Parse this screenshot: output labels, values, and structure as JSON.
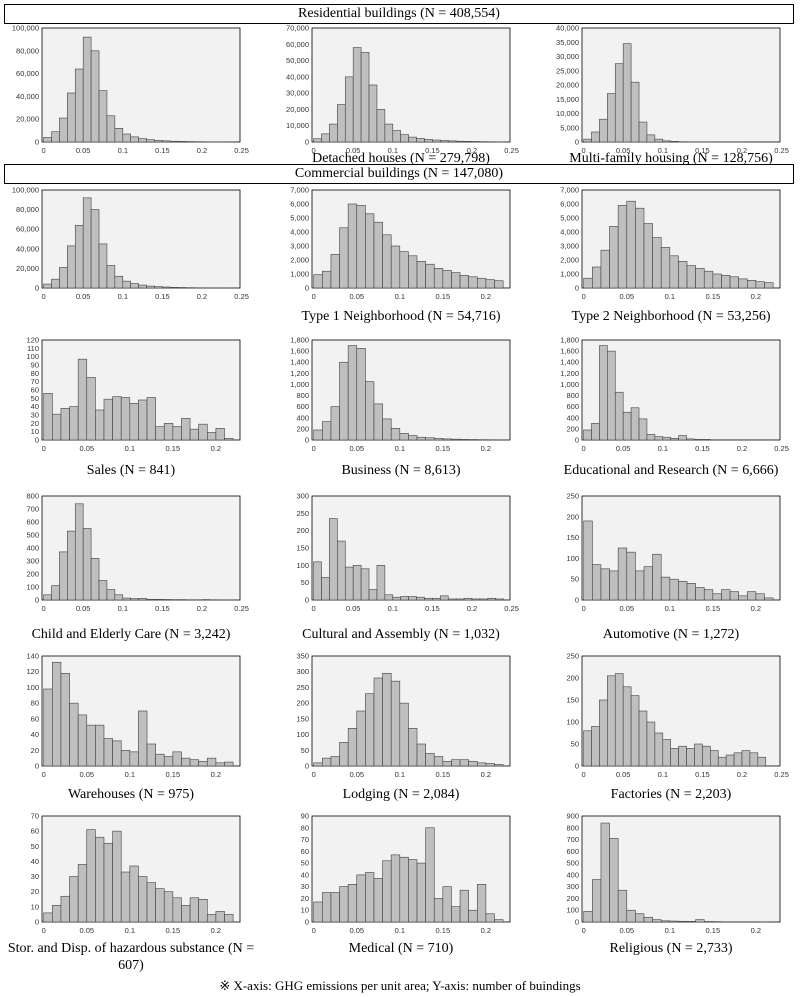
{
  "headers": {
    "residential": "Residential buildings (N = 408,554)",
    "commercial": "Commercial buildings (N = 147,080)"
  },
  "footnote": "※ X-axis: GHG emissions per unit area; Y-axis: number of buindings",
  "colors": {
    "bar": "#bfbfbf",
    "bar_stroke": "#404040",
    "plot_bg": "#f2f2f2"
  },
  "chart_data": [
    {
      "type": "bar",
      "caption": "",
      "xlim": [
        0,
        0.25
      ],
      "xticks": [
        "0",
        "0.05",
        "0.1",
        "0.15",
        "0.2",
        "0.25"
      ],
      "ylim": [
        0,
        100000
      ],
      "yticks": [
        "0",
        "20,000",
        "40,000",
        "60,000",
        "80,000",
        "100,000"
      ],
      "values": [
        4000,
        9000,
        21000,
        43000,
        64000,
        92000,
        80000,
        45000,
        23000,
        12000,
        7000,
        4500,
        3000,
        2000,
        1400,
        1000,
        700,
        500,
        350,
        250,
        150,
        100,
        70,
        50,
        30
      ]
    },
    {
      "type": "bar",
      "caption": "Detached houses (N = 279,798)",
      "xlim": [
        0,
        0.25
      ],
      "xticks": [
        "0",
        "0.05",
        "0.1",
        "0.15",
        "0.2",
        "0.25"
      ],
      "ylim": [
        0,
        70000
      ],
      "yticks": [
        "0",
        "10,000",
        "20,000",
        "30,000",
        "40,000",
        "50,000",
        "60,000",
        "70,000"
      ],
      "values": [
        2000,
        5000,
        11000,
        23000,
        40000,
        58000,
        55000,
        35000,
        20000,
        11000,
        7000,
        4500,
        3000,
        2200,
        1600,
        1200,
        900,
        700,
        500,
        400,
        300,
        200,
        150,
        100,
        80
      ]
    },
    {
      "type": "bar",
      "caption": "Multi-family housing (N = 128,756)",
      "xlim": [
        0,
        0.25
      ],
      "xticks": [
        "0",
        "0.05",
        "0.1",
        "0.15",
        "0.2",
        "0.25"
      ],
      "ylim": [
        0,
        40000
      ],
      "yticks": [
        "0",
        "5,000",
        "10,000",
        "15,000",
        "20,000",
        "25,000",
        "30,000",
        "35,000",
        "40,000"
      ],
      "values": [
        1000,
        3500,
        8000,
        17000,
        27500,
        34500,
        21000,
        7000,
        2500,
        1000,
        400,
        200,
        100,
        60,
        40,
        30,
        20,
        10,
        10,
        10,
        5,
        5,
        5,
        5,
        5
      ]
    },
    {
      "type": "bar",
      "caption": "",
      "xlim": [
        0,
        0.25
      ],
      "xticks": [
        "0",
        "0.05",
        "0.1",
        "0.15",
        "0.2",
        "0.25"
      ],
      "ylim": [
        0,
        100000
      ],
      "yticks": [
        "0",
        "20,000",
        "40,000",
        "60,000",
        "80,000",
        "100,000"
      ],
      "values": [
        4000,
        9000,
        21000,
        43000,
        64000,
        92000,
        80000,
        45000,
        23000,
        12000,
        7000,
        4500,
        3000,
        2000,
        1400,
        1000,
        700,
        500,
        350,
        250,
        150,
        100,
        70,
        50,
        30
      ]
    },
    {
      "type": "bar",
      "caption": "Type 1 Neighborhood (N = 54,716)",
      "xlim": [
        0,
        0.23
      ],
      "xticks": [
        "0",
        "0.05",
        "0.1",
        "0.15",
        "0.2"
      ],
      "ylim": [
        0,
        7000
      ],
      "yticks": [
        "0",
        "1,000",
        "2,000",
        "3,000",
        "4,000",
        "5,000",
        "6,000",
        "7,000"
      ],
      "values": [
        950,
        1200,
        2400,
        4300,
        6000,
        5900,
        5300,
        4700,
        3800,
        3000,
        2600,
        2300,
        1900,
        1700,
        1400,
        1250,
        1100,
        900,
        800,
        700,
        600,
        520,
        420
      ]
    },
    {
      "type": "bar",
      "caption": "Type 2 Neighborhood (N = 53,256)",
      "xlim": [
        0,
        0.23
      ],
      "xticks": [
        "0",
        "0.05",
        "0.1",
        "0.15",
        "0.2"
      ],
      "ylim": [
        0,
        7000
      ],
      "yticks": [
        "0",
        "1,000",
        "2,000",
        "3,000",
        "4,000",
        "5,000",
        "6,000",
        "7,000"
      ],
      "values": [
        700,
        1500,
        2700,
        4400,
        5900,
        6200,
        5700,
        4600,
        3600,
        2900,
        2300,
        1900,
        1600,
        1400,
        1200,
        1000,
        900,
        800,
        650,
        550,
        450,
        380,
        300
      ]
    },
    {
      "type": "bar",
      "caption": "Sales (N = 841)",
      "xlim": [
        0,
        0.23
      ],
      "xticks": [
        "0",
        "0.05",
        "0.1",
        "0.15",
        "0.2"
      ],
      "ylim": [
        0,
        120
      ],
      "yticks": [
        "0",
        "10",
        "20",
        "30",
        "40",
        "50",
        "60",
        "70",
        "80",
        "90",
        "100",
        "110",
        "120"
      ],
      "values": [
        56,
        31,
        38,
        40,
        97,
        75,
        36,
        49,
        52,
        51,
        44,
        48,
        51,
        16,
        20,
        16,
        26,
        13,
        19,
        9,
        14,
        2,
        5
      ]
    },
    {
      "type": "bar",
      "caption": "Business (N = 8,613)",
      "xlim": [
        0,
        0.23
      ],
      "xticks": [
        "0",
        "0.05",
        "0.1",
        "0.15",
        "0.2"
      ],
      "ylim": [
        0,
        1800
      ],
      "yticks": [
        "0",
        "200",
        "400",
        "600",
        "800",
        "1,000",
        "1,200",
        "1,400",
        "1,600",
        "1,800"
      ],
      "values": [
        180,
        330,
        600,
        1400,
        1700,
        1650,
        1050,
        650,
        380,
        210,
        120,
        80,
        50,
        40,
        30,
        20,
        15,
        10,
        8,
        6,
        5,
        4,
        3
      ]
    },
    {
      "type": "bar",
      "caption": "Educational and Research (N = 6,666)",
      "xlim": [
        0,
        0.25
      ],
      "xticks": [
        "0",
        "0.05",
        "0.1",
        "0.15",
        "0.2",
        "0.25"
      ],
      "ylim": [
        0,
        1800
      ],
      "yticks": [
        "0",
        "200",
        "400",
        "600",
        "800",
        "1,000",
        "1,200",
        "1,400",
        "1,600",
        "1,800"
      ],
      "values": [
        180,
        300,
        1700,
        1600,
        860,
        500,
        580,
        380,
        100,
        60,
        50,
        30,
        80,
        20,
        10,
        10,
        5,
        5,
        5,
        5,
        5,
        5,
        5,
        5,
        5
      ]
    },
    {
      "type": "bar",
      "caption": "Child and Elderly Care (N = 3,242)",
      "xlim": [
        0,
        0.25
      ],
      "xticks": [
        "0",
        "0.05",
        "0.1",
        "0.15",
        "0.2",
        "0.25"
      ],
      "ylim": [
        0,
        800
      ],
      "yticks": [
        "0",
        "100",
        "200",
        "300",
        "400",
        "500",
        "600",
        "700",
        "800"
      ],
      "values": [
        40,
        110,
        370,
        530,
        740,
        550,
        320,
        150,
        80,
        40,
        15,
        10,
        12,
        6,
        5,
        4,
        3,
        3,
        2,
        2,
        3,
        2,
        1,
        1,
        1
      ]
    },
    {
      "type": "bar",
      "caption": "Cultural and Assembly (N = 1,032)",
      "xlim": [
        0,
        0.25
      ],
      "xticks": [
        "0",
        "0.05",
        "0.1",
        "0.15",
        "0.2",
        "0.25"
      ],
      "ylim": [
        0,
        300
      ],
      "yticks": [
        "0",
        "50",
        "100",
        "150",
        "200",
        "250",
        "300"
      ],
      "values": [
        110,
        65,
        235,
        170,
        95,
        100,
        90,
        30,
        100,
        15,
        8,
        10,
        10,
        8,
        5,
        5,
        12,
        3,
        3,
        5,
        3,
        3,
        5,
        3,
        8
      ]
    },
    {
      "type": "bar",
      "caption": "Automotive (N = 1,272)",
      "xlim": [
        0,
        0.23
      ],
      "xticks": [
        "0",
        "0.05",
        "0.1",
        "0.15",
        "0.2"
      ],
      "ylim": [
        0,
        250
      ],
      "yticks": [
        "0",
        "50",
        "100",
        "150",
        "200",
        "250"
      ],
      "values": [
        190,
        85,
        75,
        70,
        125,
        115,
        70,
        80,
        110,
        55,
        50,
        45,
        40,
        30,
        25,
        15,
        25,
        20,
        10,
        20,
        15,
        5,
        10
      ]
    },
    {
      "type": "bar",
      "caption": "Warehouses (N = 975)",
      "xlim": [
        0,
        0.23
      ],
      "xticks": [
        "0",
        "0.05",
        "0.1",
        "0.15",
        "0.2"
      ],
      "ylim": [
        0,
        140
      ],
      "yticks": [
        "0",
        "20",
        "40",
        "60",
        "80",
        "100",
        "120",
        "140"
      ],
      "values": [
        98,
        132,
        118,
        80,
        65,
        52,
        52,
        35,
        32,
        20,
        18,
        70,
        28,
        15,
        12,
        18,
        10,
        8,
        6,
        10,
        4,
        5,
        2
      ]
    },
    {
      "type": "bar",
      "caption": "Lodging (N = 2,084)",
      "xlim": [
        0,
        0.23
      ],
      "xticks": [
        "0",
        "0.05",
        "0.1",
        "0.15",
        "0.2"
      ],
      "ylim": [
        0,
        350
      ],
      "yticks": [
        "0",
        "50",
        "100",
        "150",
        "200",
        "250",
        "300",
        "350"
      ],
      "values": [
        10,
        25,
        30,
        75,
        120,
        175,
        230,
        280,
        295,
        270,
        200,
        120,
        70,
        40,
        30,
        15,
        20,
        20,
        15,
        10,
        8,
        5,
        5
      ]
    },
    {
      "type": "bar",
      "caption": "Factories (N = 2,203)",
      "xlim": [
        0,
        0.25
      ],
      "xticks": [
        "0",
        "0.05",
        "0.1",
        "0.15",
        "0.2",
        "0.25"
      ],
      "ylim": [
        0,
        250
      ],
      "yticks": [
        "0",
        "50",
        "100",
        "150",
        "200",
        "250"
      ],
      "values": [
        80,
        90,
        150,
        205,
        210,
        180,
        160,
        125,
        100,
        75,
        60,
        40,
        45,
        40,
        50,
        45,
        35,
        20,
        25,
        30,
        35,
        30,
        20
      ]
    },
    {
      "type": "bar",
      "caption": "Stor. and Disp. of hazardous substance (N = 607)",
      "xlim": [
        0,
        0.23
      ],
      "xticks": [
        "0",
        "0.05",
        "0.1",
        "0.15",
        "0.2"
      ],
      "ylim": [
        0,
        70
      ],
      "yticks": [
        "0",
        "10",
        "20",
        "30",
        "40",
        "50",
        "60",
        "70"
      ],
      "values": [
        6,
        11,
        17,
        30,
        38,
        61,
        56,
        52,
        60,
        33,
        37,
        30,
        26,
        22,
        20,
        16,
        11,
        16,
        15,
        5,
        7,
        5,
        10
      ]
    },
    {
      "type": "bar",
      "caption": "Medical (N = 710)",
      "xlim": [
        0,
        0.23
      ],
      "xticks": [
        "0",
        "0.05",
        "0.1",
        "0.15",
        "0.2"
      ],
      "ylim": [
        0,
        90
      ],
      "yticks": [
        "0",
        "10",
        "20",
        "30",
        "40",
        "50",
        "60",
        "70",
        "80",
        "90"
      ],
      "values": [
        17,
        25,
        25,
        30,
        32,
        40,
        42,
        37,
        52,
        57,
        55,
        53,
        50,
        80,
        20,
        30,
        13,
        27,
        10,
        32,
        7,
        2,
        3
      ]
    },
    {
      "type": "bar",
      "caption": "Religious (N = 2,733)",
      "xlim": [
        0,
        0.23
      ],
      "xticks": [
        "0",
        "0.05",
        "0.1",
        "0.15",
        "0.2"
      ],
      "ylim": [
        0,
        900
      ],
      "yticks": [
        "0",
        "100",
        "200",
        "300",
        "400",
        "500",
        "600",
        "700",
        "800",
        "900"
      ],
      "values": [
        90,
        360,
        840,
        710,
        270,
        100,
        70,
        40,
        20,
        10,
        8,
        6,
        5,
        20,
        4,
        3,
        2,
        2,
        2,
        2,
        1,
        1,
        1
      ]
    }
  ]
}
